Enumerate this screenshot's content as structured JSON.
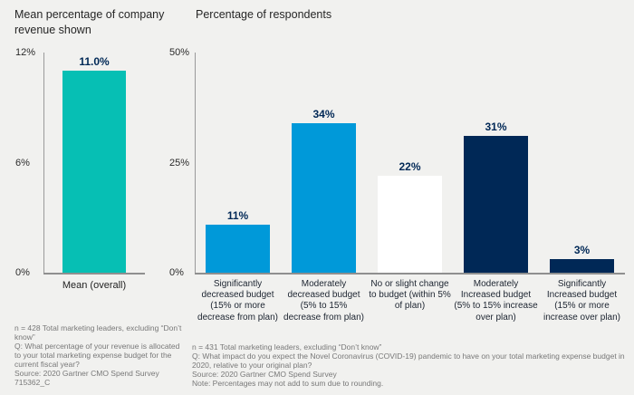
{
  "colors": {
    "background": "#f1f1ef",
    "teal": "#06bfb4",
    "blue": "#0099d9",
    "navy": "#002856",
    "white_bar": "#ffffff",
    "axis": "#8f8f8f",
    "value_label": "#002856",
    "footnote_text": "#787878"
  },
  "chart_data": [
    {
      "type": "bar",
      "title": "Mean percentage of company revenue shown",
      "categories": [
        "Mean (overall)"
      ],
      "values": [
        11.0
      ],
      "labels": [
        "11.0%"
      ],
      "ylim": [
        0,
        12
      ],
      "yticks": [
        "12%",
        "6%",
        "0%"
      ],
      "bar_colors": [
        "#06bfb4"
      ],
      "grid": "off",
      "legend": "none",
      "footnote": [
        "n = 428 Total marketing leaders, excluding “Don’t know”",
        "Q: What percentage of your revenue is allocated to your total marketing expense budget for the current fiscal year?",
        "Source: 2020 Gartner CMO Spend Survey",
        "715362_C"
      ]
    },
    {
      "type": "bar",
      "title": "Percentage of respondents",
      "categories": [
        "Significantly decreased budget (15% or more decrease from plan)",
        "Moderately decreased budget (5% to 15% decrease from plan)",
        "No or slight change to budget (within 5% of plan)",
        "Moderately Increased budget (5% to 15% increase over plan)",
        "Significantly Increased budget (15% or more increase over plan)"
      ],
      "values": [
        11,
        34,
        22,
        31,
        3
      ],
      "labels": [
        "11%",
        "34%",
        "22%",
        "31%",
        "3%"
      ],
      "ylim": [
        0,
        50
      ],
      "yticks": [
        "50%",
        "25%",
        "0%"
      ],
      "bar_colors": [
        "#0099d9",
        "#0099d9",
        "#ffffff",
        "#002856",
        "#002856"
      ],
      "grid": "off",
      "legend": "none",
      "footnote": [
        "n = 431 Total marketing leaders, excluding “Don’t know”",
        "Q: What impact do you expect the Novel Coronavirus (COVID-19) pandemic to have on your total marketing expense budget in 2020, relative to your original plan?",
        "Source: 2020 Gartner CMO Spend Survey",
        "Note: Percentages may not add to sum due to rounding."
      ]
    }
  ]
}
